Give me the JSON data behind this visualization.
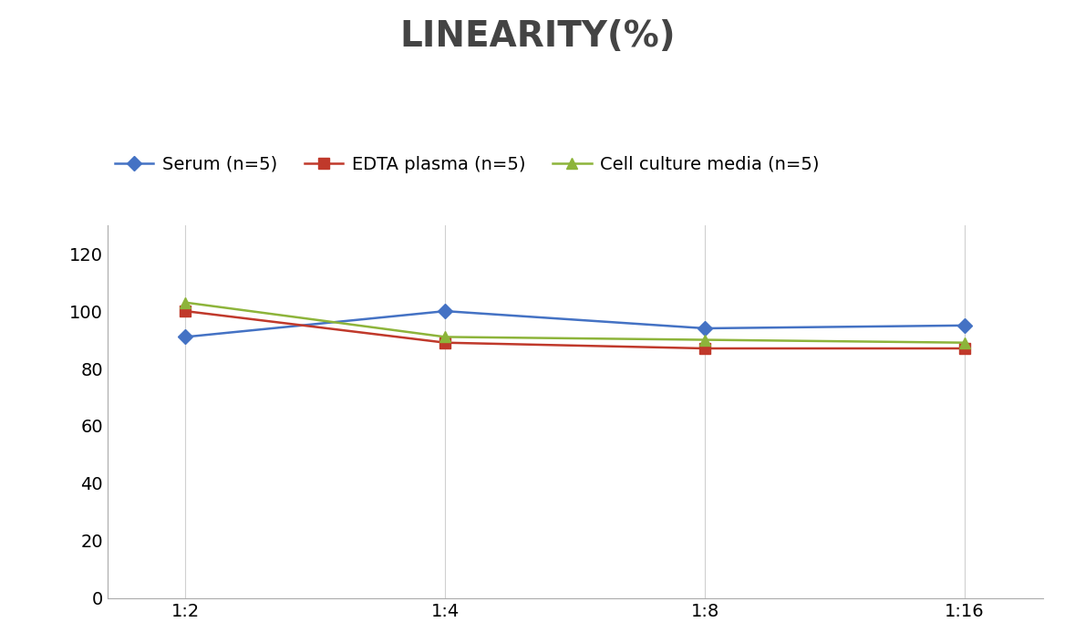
{
  "title": "LINEARITY(%)",
  "x_labels": [
    "1:2",
    "1:4",
    "1:8",
    "1:16"
  ],
  "x_values": [
    0,
    1,
    2,
    3
  ],
  "series": [
    {
      "label": "Serum (n=5)",
      "values": [
        91,
        100,
        94,
        95
      ],
      "color": "#4472C4",
      "marker": "D",
      "linewidth": 1.8,
      "markersize": 8
    },
    {
      "label": "EDTA plasma (n=5)",
      "values": [
        100,
        89,
        87,
        87
      ],
      "color": "#C0392B",
      "marker": "s",
      "linewidth": 1.8,
      "markersize": 8
    },
    {
      "label": "Cell culture media (n=5)",
      "values": [
        103,
        91,
        90,
        89
      ],
      "color": "#8DB43A",
      "marker": "^",
      "linewidth": 1.8,
      "markersize": 8
    }
  ],
  "ylim": [
    0,
    130
  ],
  "yticks": [
    0,
    20,
    40,
    60,
    80,
    100,
    120
  ],
  "title_fontsize": 28,
  "legend_fontsize": 14,
  "tick_fontsize": 14,
  "background_color": "#ffffff",
  "grid_color": "#d0d0d0"
}
